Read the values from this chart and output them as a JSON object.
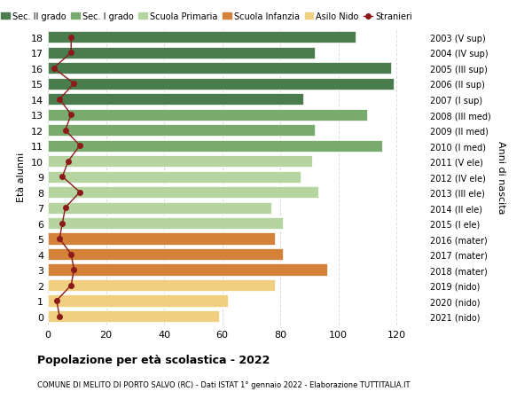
{
  "ages": [
    18,
    17,
    16,
    15,
    14,
    13,
    12,
    11,
    10,
    9,
    8,
    7,
    6,
    5,
    4,
    3,
    2,
    1,
    0
  ],
  "right_labels": [
    "2003 (V sup)",
    "2004 (IV sup)",
    "2005 (III sup)",
    "2006 (II sup)",
    "2007 (I sup)",
    "2008 (III med)",
    "2009 (II med)",
    "2010 (I med)",
    "2011 (V ele)",
    "2012 (IV ele)",
    "2013 (III ele)",
    "2014 (II ele)",
    "2015 (I ele)",
    "2016 (mater)",
    "2017 (mater)",
    "2018 (mater)",
    "2019 (nido)",
    "2020 (nido)",
    "2021 (nido)"
  ],
  "bar_values": [
    106,
    92,
    118,
    119,
    88,
    110,
    92,
    115,
    91,
    87,
    93,
    77,
    81,
    78,
    81,
    96,
    78,
    62,
    59
  ],
  "bar_colors": [
    "#4a7c4e",
    "#4a7c4e",
    "#4a7c4e",
    "#4a7c4e",
    "#4a7c4e",
    "#7aab6e",
    "#7aab6e",
    "#7aab6e",
    "#b5d4a0",
    "#b5d4a0",
    "#b5d4a0",
    "#b5d4a0",
    "#b5d4a0",
    "#d4813a",
    "#d4813a",
    "#d4813a",
    "#f0d080",
    "#f0d080",
    "#f0d080"
  ],
  "stranieri_values": [
    8,
    8,
    2,
    9,
    4,
    8,
    6,
    11,
    7,
    5,
    11,
    6,
    5,
    4,
    8,
    9,
    8,
    3,
    4
  ],
  "stranieri_color": "#8b1a1a",
  "legend_labels": [
    "Sec. II grado",
    "Sec. I grado",
    "Scuola Primaria",
    "Scuola Infanzia",
    "Asilo Nido",
    "Stranieri"
  ],
  "legend_colors": [
    "#4a7c4e",
    "#7aab6e",
    "#b5d4a0",
    "#d4813a",
    "#f0d080",
    "#8b1a1a"
  ],
  "ylabel_left": "Età alunni",
  "ylabel_right": "Anni di nascita",
  "title": "Popolazione per età scolastica - 2022",
  "subtitle": "COMUNE DI MELITO DI PORTO SALVO (RC) - Dati ISTAT 1° gennaio 2022 - Elaborazione TUTTITALIA.IT",
  "xlim": [
    0,
    130
  ],
  "xticks": [
    0,
    20,
    40,
    60,
    80,
    100,
    120
  ],
  "bg_color": "#ffffff",
  "grid_color": "#dddddd"
}
